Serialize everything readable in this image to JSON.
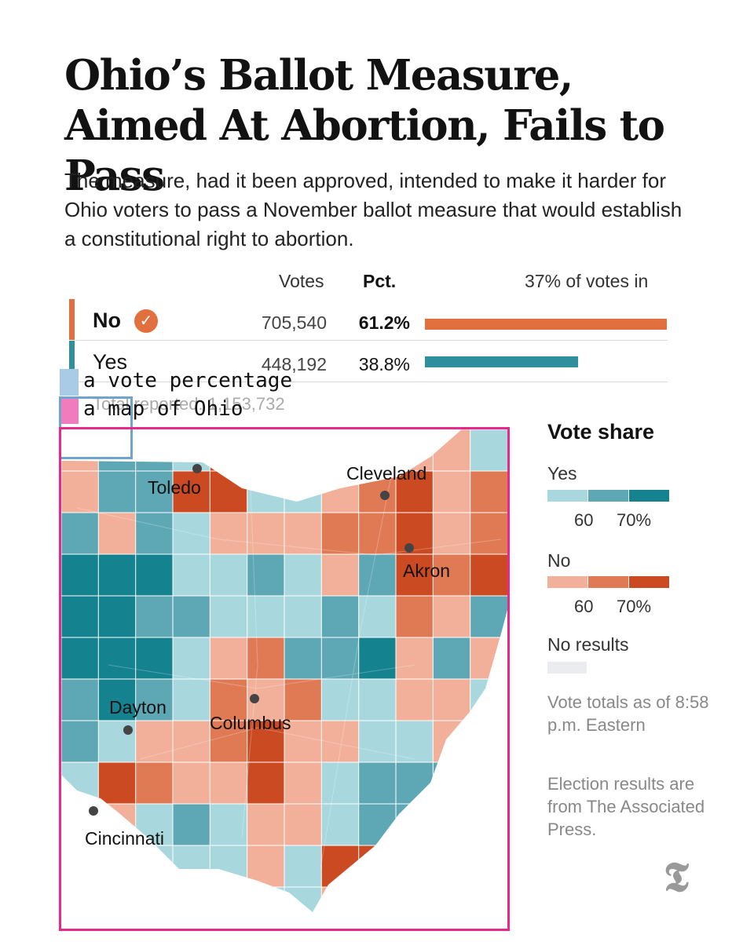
{
  "headline": "Ohio’s Ballot Measure, Aimed At Abortion, Fails to Pass",
  "dek": "The measure, had it been approved, intended to make it harder for Ohio voters to pass a November ballot measure that would establish a constitutional right to abortion.",
  "table": {
    "headers": {
      "votes": "Votes",
      "pct": "Pct.",
      "reporting": "37% of votes in"
    },
    "rows": [
      {
        "label": "No",
        "votes": "705,540",
        "pct": "61.2%",
        "share": 0.612,
        "winner": true,
        "color": "#e2703e"
      },
      {
        "label": "Yes",
        "votes": "448,192",
        "pct": "38.8%",
        "share": 0.388,
        "winner": false,
        "color": "#2f8f9d"
      }
    ],
    "total": "Total reported: 1,153,732"
  },
  "annotations": [
    {
      "text": "a vote percentage",
      "color": "#a9cbe6"
    },
    {
      "text": "a map of Ohio",
      "color": "#f07bbd"
    }
  ],
  "legend": {
    "title": "Vote share",
    "yes_label": "Yes",
    "yes_colors": [
      "#a8d8de",
      "#5ea7b4",
      "#14838f"
    ],
    "no_label": "No",
    "no_colors": [
      "#f2b09a",
      "#e07a55",
      "#cc4a22"
    ],
    "ticks": [
      "60",
      "70%"
    ],
    "no_results_label": "No results",
    "no_results_color": "#ebecf0",
    "note_time": "Vote totals as of 8:58 p.m. Eastern",
    "note_source": "Election results are from The Associated Press."
  },
  "map": {
    "cities": [
      "Toledo",
      "Cleveland",
      "Akron",
      "Dayton",
      "Columbus",
      "Cincinnati"
    ],
    "grid_cols": 12,
    "grid_rows": 12,
    "county_results": [
      [
        "no1",
        "yes2",
        "yes2",
        "yes1",
        "no3",
        "no3",
        "no2",
        "no2",
        "no1",
        "no1",
        "no1",
        "yes1"
      ],
      [
        "no1",
        "yes2",
        "yes2",
        "no3",
        "no3",
        "yes1",
        "yes1",
        "no1",
        "no2",
        "no3",
        "no1",
        "no2"
      ],
      [
        "yes2",
        "no1",
        "yes2",
        "yes1",
        "no1",
        "no1",
        "no1",
        "no2",
        "no2",
        "no3",
        "no1",
        "no2"
      ],
      [
        "yes3",
        "yes3",
        "yes3",
        "yes1",
        "yes1",
        "yes2",
        "yes1",
        "no1",
        "yes2",
        "no3",
        "no2",
        "no3"
      ],
      [
        "yes3",
        "yes3",
        "yes2",
        "yes2",
        "yes1",
        "yes1",
        "yes1",
        "yes2",
        "yes1",
        "no2",
        "no1",
        "yes2"
      ],
      [
        "yes3",
        "yes3",
        "yes3",
        "yes1",
        "no1",
        "no2",
        "yes2",
        "yes2",
        "yes3",
        "no1",
        "yes2",
        "no1"
      ],
      [
        "yes2",
        "yes3",
        "yes2",
        "yes1",
        "no2",
        "no1",
        "no2",
        "yes1",
        "yes1",
        "no1",
        "no1",
        "yes1"
      ],
      [
        "yes2",
        "yes1",
        "no1",
        "no1",
        "no2",
        "no3",
        "no1",
        "no1",
        "yes1",
        "yes1",
        "no1",
        "no1"
      ],
      [
        "yes1",
        "no3",
        "no2",
        "no1",
        "no1",
        "no3",
        "no1",
        "yes1",
        "yes2",
        "yes2",
        "yes2",
        "yes1"
      ],
      [
        "no2",
        "no1",
        "yes1",
        "yes2",
        "yes1",
        "no1",
        "no1",
        "yes1",
        "yes2",
        "yes2",
        "yes1",
        "yes1"
      ],
      [
        "no3",
        "yes1",
        "yes1",
        "yes1",
        "yes1",
        "no1",
        "yes1",
        "no3",
        "no3",
        "yes2",
        "yes1",
        "yes1"
      ],
      [
        "no2",
        "yes1",
        "yes1",
        "yes2",
        "yes1",
        "yes1",
        "yes1",
        "no1",
        "yes1",
        "yes2",
        "yes1",
        "yes1"
      ]
    ]
  }
}
